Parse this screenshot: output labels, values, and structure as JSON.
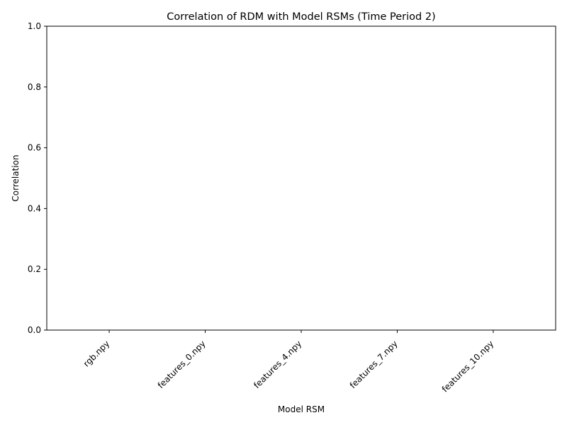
{
  "chart_data": {
    "type": "bar",
    "title": "Correlation of RDM with Model RSMs (Time Period 2)",
    "xlabel": "Model RSM",
    "ylabel": "Correlation",
    "categories": [
      "rgb.npy",
      "features_0.npy",
      "features_4.npy",
      "features_7.npy",
      "features_10.npy"
    ],
    "values": [
      0,
      0,
      0,
      0,
      0
    ],
    "ylim": [
      0,
      1
    ],
    "yticks": [
      "0.0",
      "0.2",
      "0.4",
      "0.6",
      "0.8",
      "1.0"
    ],
    "grid": false,
    "legend": "none"
  }
}
